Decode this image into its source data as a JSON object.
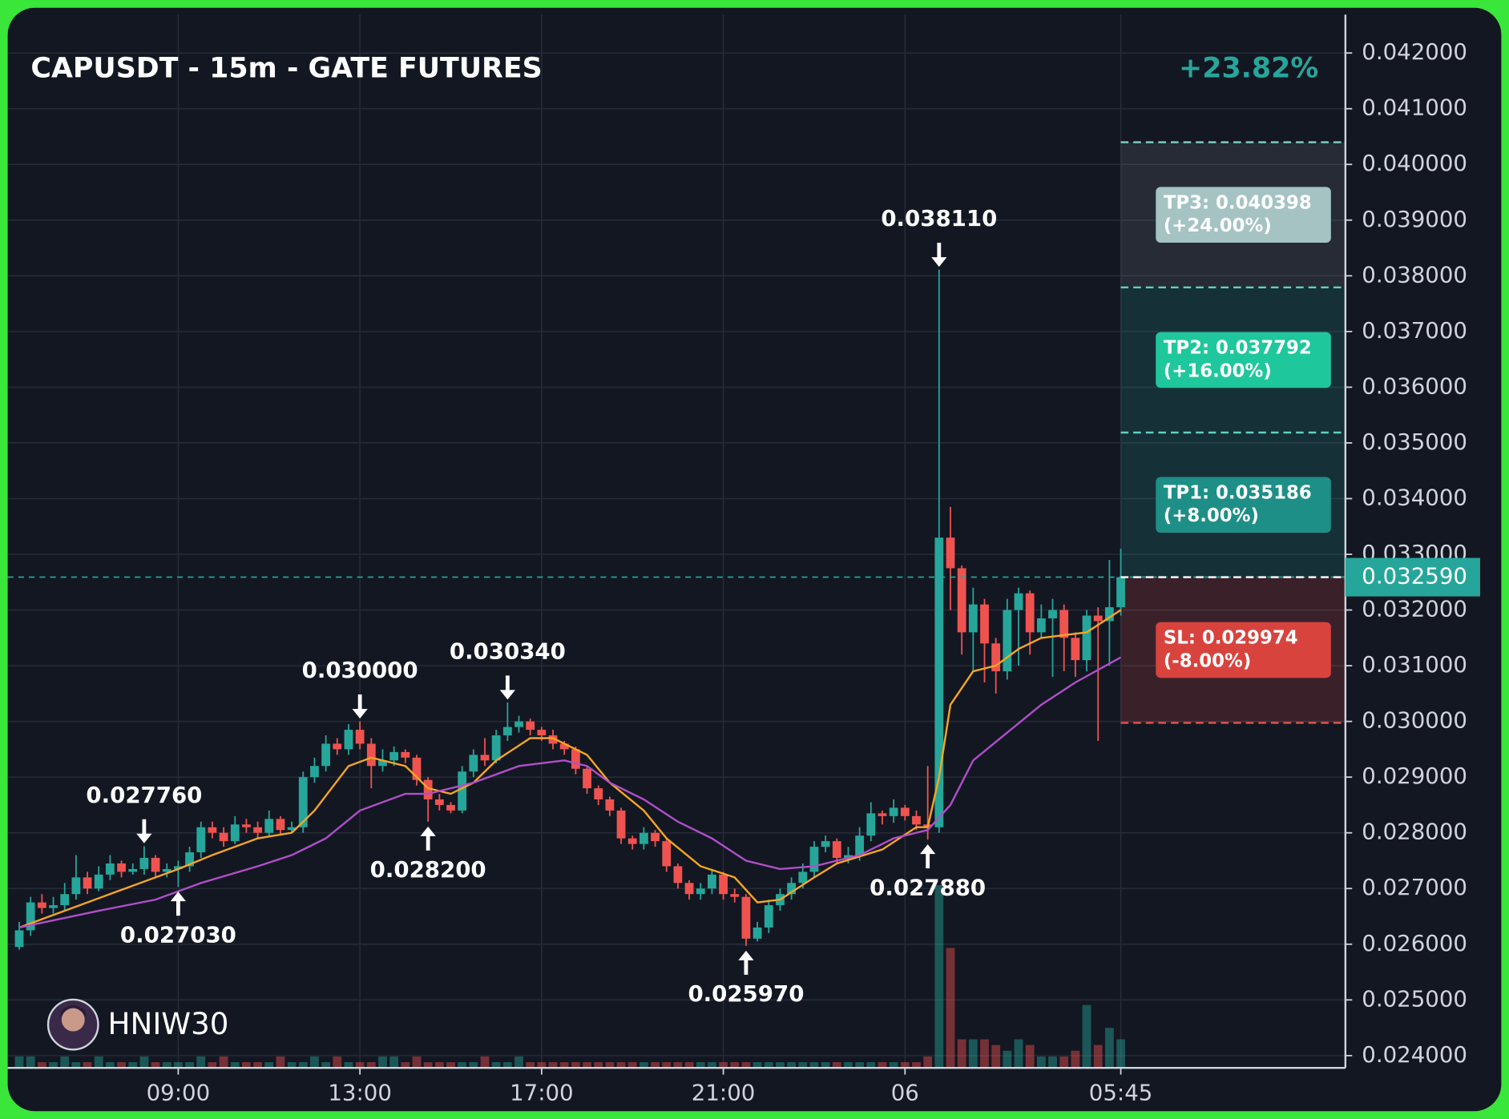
{
  "chart_data": {
    "type": "candlestick",
    "title": "CAPUSDT - 15m - GATE FUTURES",
    "change": "+23.82%",
    "watermark": "HNIW30",
    "up_color": "#26a69a",
    "down_color": "#ef5350",
    "categories": [
      null,
      null,
      null,
      null,
      null,
      null,
      null,
      null,
      null,
      null,
      null,
      null,
      null,
      null,
      "09:00",
      null,
      null,
      null,
      null,
      null,
      null,
      null,
      null,
      null,
      null,
      null,
      null,
      null,
      null,
      null,
      "13:00",
      null,
      null,
      null,
      null,
      null,
      null,
      null,
      null,
      null,
      null,
      null,
      null,
      null,
      null,
      null,
      "17:00",
      null,
      null,
      null,
      null,
      null,
      null,
      null,
      null,
      null,
      null,
      null,
      null,
      null,
      null,
      null,
      "21:00",
      null,
      null,
      null,
      null,
      null,
      null,
      null,
      null,
      null,
      null,
      null,
      null,
      null,
      null,
      null,
      "06",
      null,
      null,
      null,
      null,
      null,
      null,
      null,
      null,
      null,
      null,
      null,
      null,
      null,
      null,
      null,
      null,
      null,
      null,
      "05:45"
    ],
    "open": [
      0.02595,
      0.02625,
      0.02675,
      0.02665,
      0.0267,
      0.0269,
      0.0272,
      0.027,
      0.02725,
      0.02745,
      0.0273,
      0.02735,
      0.02755,
      0.0273,
      0.02735,
      0.0274,
      0.02765,
      0.0281,
      0.028,
      0.02785,
      0.02815,
      0.0281,
      0.028,
      0.02825,
      0.02805,
      0.0281,
      0.029,
      0.0292,
      0.0296,
      0.0295,
      0.02985,
      0.0296,
      0.0292,
      0.0293,
      0.02945,
      0.02935,
      0.02895,
      0.0286,
      0.0285,
      0.0284,
      0.0291,
      0.0294,
      0.0293,
      0.02975,
      0.0299,
      0.03,
      0.02985,
      0.02975,
      0.0296,
      0.0295,
      0.02915,
      0.0288,
      0.0286,
      0.0284,
      0.0279,
      0.0278,
      0.028,
      0.02785,
      0.0274,
      0.0271,
      0.0269,
      0.027,
      0.02725,
      0.0269,
      0.02685,
      0.0261,
      0.0263,
      0.0267,
      0.0269,
      0.0271,
      0.0273,
      0.02775,
      0.02785,
      0.02755,
      0.0276,
      0.02795,
      0.02835,
      0.0283,
      0.02845,
      0.0283,
      0.02815,
      0.0281,
      0.0333,
      0.03275,
      0.0316,
      0.0321,
      0.0314,
      0.0309,
      0.032,
      0.0323,
      0.0316,
      0.03185,
      0.032,
      0.0315,
      0.0311,
      0.0319,
      0.0318,
      0.03205
    ],
    "high": [
      0.0264,
      0.02685,
      0.0269,
      0.02685,
      0.0271,
      0.0276,
      0.0273,
      0.0274,
      0.0276,
      0.0275,
      0.02745,
      0.02776,
      0.0276,
      0.02745,
      0.0275,
      0.02775,
      0.0282,
      0.0282,
      0.0281,
      0.0283,
      0.02825,
      0.0282,
      0.0284,
      0.0283,
      0.0282,
      0.0291,
      0.02935,
      0.02975,
      0.0297,
      0.02995,
      0.03,
      0.0297,
      0.0295,
      0.02955,
      0.0295,
      0.0294,
      0.029,
      0.0287,
      0.02855,
      0.0292,
      0.0295,
      0.0297,
      0.02985,
      0.03034,
      0.0301,
      0.03005,
      0.0299,
      0.02985,
      0.02965,
      0.02955,
      0.0292,
      0.02885,
      0.02865,
      0.02845,
      0.02795,
      0.0281,
      0.02805,
      0.0279,
      0.02745,
      0.02715,
      0.0271,
      0.02735,
      0.0273,
      0.027,
      0.0269,
      0.0264,
      0.0268,
      0.027,
      0.0272,
      0.02745,
      0.02785,
      0.02795,
      0.0279,
      0.02775,
      0.0281,
      0.02855,
      0.0284,
      0.0286,
      0.0285,
      0.0284,
      0.0292,
      0.03811,
      0.03385,
      0.0328,
      0.0324,
      0.0322,
      0.0315,
      0.0322,
      0.0324,
      0.03235,
      0.0321,
      0.0322,
      0.0321,
      0.0316,
      0.032,
      0.03205,
      0.0329,
      0.0331
    ],
    "low": [
      0.0259,
      0.02615,
      0.02655,
      0.02655,
      0.0266,
      0.0268,
      0.0269,
      0.02695,
      0.02715,
      0.0272,
      0.02725,
      0.02725,
      0.0272,
      0.0272,
      0.02703,
      0.0273,
      0.02755,
      0.0279,
      0.02775,
      0.0278,
      0.028,
      0.0279,
      0.02795,
      0.02795,
      0.028,
      0.028,
      0.0289,
      0.0291,
      0.0294,
      0.0294,
      0.0295,
      0.0288,
      0.0291,
      0.0292,
      0.02925,
      0.02885,
      0.0282,
      0.0284,
      0.02835,
      0.02835,
      0.029,
      0.0292,
      0.02925,
      0.02965,
      0.0298,
      0.02975,
      0.02965,
      0.0295,
      0.0294,
      0.02905,
      0.0287,
      0.0285,
      0.0283,
      0.0278,
      0.0277,
      0.0277,
      0.02775,
      0.0273,
      0.027,
      0.0268,
      0.0268,
      0.0269,
      0.0268,
      0.02675,
      0.02597,
      0.02605,
      0.0262,
      0.0266,
      0.0268,
      0.027,
      0.0272,
      0.02765,
      0.02745,
      0.02745,
      0.0275,
      0.02785,
      0.02815,
      0.02818,
      0.02822,
      0.02805,
      0.02788,
      0.028,
      0.032,
      0.0312,
      0.0309,
      0.0307,
      0.0305,
      0.03075,
      0.031,
      0.0312,
      0.0315,
      0.0308,
      0.0309,
      0.0308,
      0.0309,
      0.02965,
      0.031,
      0.0319
    ],
    "close": [
      0.02625,
      0.02675,
      0.02665,
      0.0267,
      0.0269,
      0.0272,
      0.027,
      0.02725,
      0.02745,
      0.0273,
      0.02735,
      0.02755,
      0.0273,
      0.02735,
      0.0274,
      0.02765,
      0.0281,
      0.028,
      0.02785,
      0.02815,
      0.0281,
      0.028,
      0.02825,
      0.02805,
      0.0281,
      0.029,
      0.0292,
      0.0296,
      0.0295,
      0.02985,
      0.0296,
      0.0292,
      0.0293,
      0.02945,
      0.02935,
      0.02895,
      0.0286,
      0.0285,
      0.0284,
      0.0291,
      0.0294,
      0.0293,
      0.02975,
      0.0299,
      0.03,
      0.02985,
      0.02975,
      0.0296,
      0.0295,
      0.02915,
      0.0288,
      0.0286,
      0.0284,
      0.0279,
      0.0278,
      0.028,
      0.02785,
      0.0274,
      0.0271,
      0.0269,
      0.027,
      0.02725,
      0.0269,
      0.02685,
      0.0261,
      0.0263,
      0.0267,
      0.0269,
      0.0271,
      0.0273,
      0.02775,
      0.02785,
      0.02755,
      0.0276,
      0.02795,
      0.02835,
      0.0283,
      0.02845,
      0.0283,
      0.02815,
      0.0281,
      0.0333,
      0.03275,
      0.0316,
      0.0321,
      0.0314,
      0.0309,
      0.032,
      0.0323,
      0.0316,
      0.03185,
      0.032,
      0.0315,
      0.0311,
      0.0319,
      0.0318,
      0.03205,
      0.03259
    ],
    "volume": [
      2,
      2,
      1,
      1,
      2,
      1,
      1,
      2,
      1,
      1,
      1,
      2,
      1,
      1,
      1,
      1,
      2,
      1,
      2,
      1,
      1,
      1,
      1,
      2,
      1,
      1,
      2,
      1,
      2,
      1,
      1,
      1,
      2,
      2,
      1,
      2,
      1,
      1,
      1,
      1,
      1,
      2,
      1,
      1,
      2,
      1,
      1,
      1,
      1,
      1,
      1,
      1,
      1,
      1,
      1,
      1,
      1,
      1,
      1,
      1,
      1,
      1,
      1,
      1,
      1,
      1,
      1,
      1,
      1,
      1,
      1,
      1,
      1,
      1,
      1,
      1,
      1,
      1,
      1,
      1,
      2,
      32,
      21,
      5,
      5,
      5,
      4,
      3,
      5,
      4,
      2,
      2,
      2,
      3,
      11,
      4,
      7,
      5
    ],
    "ma_lines": [
      {
        "color": "#f5a623",
        "x": [
          0,
          8,
          12,
          14,
          17,
          21,
          24,
          26,
          29,
          31,
          34,
          36,
          38,
          40,
          42,
          45,
          47,
          50,
          52,
          55,
          57,
          60,
          63,
          65,
          67,
          70,
          72,
          76,
          79,
          80,
          81,
          82,
          84,
          86,
          88,
          90,
          94,
          97
        ],
        "values": [
          0.0263,
          0.0269,
          0.0272,
          0.02735,
          0.0276,
          0.0279,
          0.028,
          0.0284,
          0.0292,
          0.02935,
          0.0292,
          0.0288,
          0.0287,
          0.0289,
          0.0293,
          0.0297,
          0.0297,
          0.0294,
          0.0289,
          0.0284,
          0.0279,
          0.0274,
          0.0272,
          0.02675,
          0.0268,
          0.0272,
          0.02745,
          0.0277,
          0.0281,
          0.0281,
          0.029,
          0.0303,
          0.0309,
          0.031,
          0.0313,
          0.0315,
          0.0316,
          0.032
        ]
      },
      {
        "color": "#b04fc9",
        "x": [
          0,
          7,
          12,
          16,
          21,
          24,
          27,
          30,
          34,
          36,
          40,
          44,
          48,
          50,
          52,
          55,
          58,
          61,
          64,
          67,
          70,
          74,
          77,
          80,
          82,
          84,
          87,
          90,
          93,
          97
        ],
        "values": [
          0.0263,
          0.0266,
          0.0268,
          0.0271,
          0.0274,
          0.0276,
          0.0279,
          0.0284,
          0.0287,
          0.0287,
          0.0289,
          0.0292,
          0.0293,
          0.0292,
          0.0289,
          0.0286,
          0.0282,
          0.0279,
          0.0275,
          0.02735,
          0.0274,
          0.0276,
          0.0279,
          0.02805,
          0.0285,
          0.0293,
          0.0298,
          0.0303,
          0.0307,
          0.03115
        ]
      }
    ],
    "annotations": [
      {
        "value": 0.02776,
        "label": "0.027760",
        "side": "high"
      },
      {
        "value": 0.02703,
        "label": "0.027030",
        "side": "low"
      },
      {
        "value": 0.03,
        "label": "0.030000",
        "side": "high"
      },
      {
        "value": 0.0282,
        "label": "0.028200",
        "side": "low"
      },
      {
        "value": 0.03034,
        "label": "0.030340",
        "side": "high"
      },
      {
        "value": 0.02597,
        "label": "0.025970",
        "side": "low"
      },
      {
        "value": 0.03811,
        "label": "0.038110",
        "side": "high"
      },
      {
        "value": 0.02788,
        "label": "0.027880",
        "side": "low"
      }
    ],
    "entry": {
      "value": 0.03259,
      "label": "0.032590"
    },
    "levels": [
      {
        "value": 0.040398,
        "label": "TP3: 0.040398",
        "note": "(+24.00%)",
        "zone_color": "#7f8c98",
        "box_color": "#a5c3c3",
        "line_color": "#7fd3c8"
      },
      {
        "value": 0.037792,
        "label": "TP2: 0.037792",
        "note": "(+16.00%)",
        "zone_color": "#26a69a",
        "box_color": "#1fc79c",
        "line_color": "#5fd0c2"
      },
      {
        "value": 0.035186,
        "label": "TP1: 0.035186",
        "note": "(+8.00%)",
        "zone_color": "#26a69a",
        "box_color": "#1e8f86",
        "line_color": "#5fd0c2"
      },
      {
        "value": 0.029974,
        "label": "SL: 0.029974",
        "note": "(-8.00%)",
        "zone_color": "#ef5350",
        "box_color": "#d8433e",
        "line_color": "#e05550"
      }
    ],
    "ylim": [
      0.02378,
      0.04269
    ],
    "yticks": [
      {
        "value": 0.024,
        "label": "0.024000"
      },
      {
        "value": 0.025,
        "label": "0.025000"
      },
      {
        "value": 0.026,
        "label": "0.026000"
      },
      {
        "value": 0.027,
        "label": "0.027000"
      },
      {
        "value": 0.028,
        "label": "0.028000"
      },
      {
        "value": 0.029,
        "label": "0.029000"
      },
      {
        "value": 0.03,
        "label": "0.030000"
      },
      {
        "value": 0.031,
        "label": "0.031000"
      },
      {
        "value": 0.032,
        "label": "0.032000"
      },
      {
        "value": 0.033,
        "label": "0.033000"
      },
      {
        "value": 0.034,
        "label": "0.034000"
      },
      {
        "value": 0.035,
        "label": "0.035000"
      },
      {
        "value": 0.036,
        "label": "0.036000"
      },
      {
        "value": 0.037,
        "label": "0.037000"
      },
      {
        "value": 0.038,
        "label": "0.038000"
      },
      {
        "value": 0.039,
        "label": "0.039000"
      },
      {
        "value": 0.04,
        "label": "0.040000"
      },
      {
        "value": 0.041,
        "label": "0.041000"
      },
      {
        "value": 0.042,
        "label": "0.042000"
      }
    ],
    "grid": true
  }
}
